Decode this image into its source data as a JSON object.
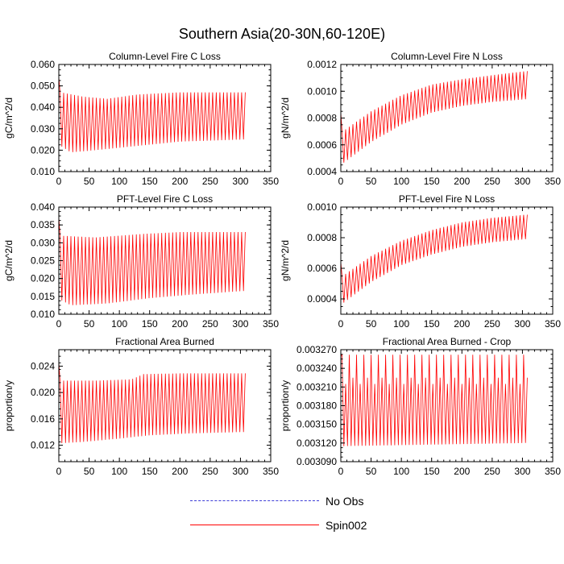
{
  "figure_title": "Southern Asia(20-30N,60-120E)",
  "legend": {
    "items": [
      {
        "label": "No Obs",
        "color": "#3b3bd6",
        "style": "dashed"
      },
      {
        "label": "Spin002",
        "color": "#ff0000",
        "style": "solid"
      }
    ]
  },
  "chart_data": [
    {
      "type": "line",
      "title": "Column-Level Fire C Loss",
      "ylabel": "gC/m^2/d",
      "xlabel": "",
      "xlim": [
        0,
        350
      ],
      "xticks": [
        0,
        50,
        100,
        150,
        200,
        250,
        300,
        350
      ],
      "ylim": [
        0.01,
        0.06
      ],
      "yticks": [
        "0.010",
        "0.020",
        "0.030",
        "0.040",
        "0.050",
        "0.060"
      ],
      "series": [
        {
          "name": "Spin002",
          "color": "#ff0000",
          "x_range": [
            0,
            308
          ],
          "period": 6,
          "spike": 0.054,
          "upper_pts": [
            [
              3,
              0.047
            ],
            [
              40,
              0.045
            ],
            [
              80,
              0.044
            ],
            [
              130,
              0.046
            ],
            [
              200,
              0.047
            ],
            [
              305,
              0.047
            ]
          ],
          "lower_pts": [
            [
              3,
              0.022
            ],
            [
              20,
              0.019
            ],
            [
              60,
              0.02
            ],
            [
              130,
              0.022
            ],
            [
              200,
              0.024
            ],
            [
              305,
              0.025
            ]
          ]
        }
      ]
    },
    {
      "type": "line",
      "title": "Column-Level Fire N Loss",
      "ylabel": "gN/m^2/d",
      "xlabel": "",
      "xlim": [
        0,
        350
      ],
      "xticks": [
        0,
        50,
        100,
        150,
        200,
        250,
        300,
        350
      ],
      "ylim": [
        0.0004,
        0.0012
      ],
      "yticks": [
        "0.0004",
        "0.0006",
        "0.0008",
        "0.0010",
        "0.0012"
      ],
      "series": [
        {
          "name": "Spin002",
          "color": "#ff0000",
          "x_range": [
            0,
            308
          ],
          "period": 6,
          "spike": 0.00084,
          "upper_pts": [
            [
              3,
              0.0007
            ],
            [
              50,
              0.00085
            ],
            [
              100,
              0.00097
            ],
            [
              150,
              0.00105
            ],
            [
              200,
              0.00109
            ],
            [
              250,
              0.00112
            ],
            [
              305,
              0.00115
            ]
          ],
          "lower_pts": [
            [
              3,
              0.00046
            ],
            [
              50,
              0.00062
            ],
            [
              100,
              0.00075
            ],
            [
              150,
              0.00084
            ],
            [
              200,
              0.00089
            ],
            [
              250,
              0.00092
            ],
            [
              305,
              0.00094
            ]
          ]
        }
      ]
    },
    {
      "type": "line",
      "title": "PFT-Level Fire C Loss",
      "ylabel": "gC/m^2/d",
      "xlabel": "",
      "xlim": [
        0,
        350
      ],
      "xticks": [
        0,
        50,
        100,
        150,
        200,
        250,
        300,
        350
      ],
      "ylim": [
        0.01,
        0.04
      ],
      "yticks": [
        "0.010",
        "0.015",
        "0.020",
        "0.025",
        "0.030",
        "0.035",
        "0.040"
      ],
      "series": [
        {
          "name": "Spin002",
          "color": "#ff0000",
          "x_range": [
            0,
            308
          ],
          "period": 6,
          "spike": 0.037,
          "upper_pts": [
            [
              3,
              0.032
            ],
            [
              60,
              0.0315
            ],
            [
              140,
              0.0325
            ],
            [
              200,
              0.033
            ],
            [
              305,
              0.033
            ]
          ],
          "lower_pts": [
            [
              3,
              0.014
            ],
            [
              20,
              0.0125
            ],
            [
              80,
              0.013
            ],
            [
              150,
              0.0145
            ],
            [
              220,
              0.0155
            ],
            [
              305,
              0.0165
            ]
          ]
        }
      ]
    },
    {
      "type": "line",
      "title": "PFT-Level Fire N Loss",
      "ylabel": "gN/m^2/d",
      "xlabel": "",
      "xlim": [
        0,
        350
      ],
      "xticks": [
        0,
        50,
        100,
        150,
        200,
        250,
        300,
        350
      ],
      "ylim": [
        0.0003,
        0.001
      ],
      "yticks": [
        "0.0004",
        "0.0006",
        "0.0008",
        "0.0010"
      ],
      "series": [
        {
          "name": "Spin002",
          "color": "#ff0000",
          "x_range": [
            0,
            308
          ],
          "period": 6,
          "spike": 0.00064,
          "upper_pts": [
            [
              3,
              0.00055
            ],
            [
              50,
              0.00068
            ],
            [
              100,
              0.00078
            ],
            [
              150,
              0.00085
            ],
            [
              200,
              0.0009
            ],
            [
              250,
              0.00093
            ],
            [
              305,
              0.00095
            ]
          ],
          "lower_pts": [
            [
              3,
              0.00037
            ],
            [
              50,
              0.00051
            ],
            [
              100,
              0.00062
            ],
            [
              150,
              0.00069
            ],
            [
              200,
              0.00074
            ],
            [
              250,
              0.00077
            ],
            [
              305,
              0.00079
            ]
          ]
        }
      ]
    },
    {
      "type": "line",
      "title": "Fractional Area Burned",
      "ylabel": "proportion/y",
      "xlabel": "",
      "xlim": [
        0,
        350
      ],
      "xticks": [
        0,
        50,
        100,
        150,
        200,
        250,
        300,
        350
      ],
      "ylim": [
        0.0095,
        0.0265
      ],
      "yticks": [
        "0.012",
        "0.016",
        "0.020",
        "0.024"
      ],
      "series": [
        {
          "name": "Spin002",
          "color": "#ff0000",
          "x_range": [
            0,
            308
          ],
          "period": 6,
          "spike": 0.0246,
          "upper_pts": [
            [
              3,
              0.0218
            ],
            [
              60,
              0.0218
            ],
            [
              120,
              0.022
            ],
            [
              140,
              0.0228
            ],
            [
              200,
              0.0229
            ],
            [
              305,
              0.0229
            ]
          ],
          "lower_pts": [
            [
              3,
              0.0123
            ],
            [
              40,
              0.0125
            ],
            [
              100,
              0.013
            ],
            [
              150,
              0.0135
            ],
            [
              220,
              0.0138
            ],
            [
              305,
              0.014
            ]
          ]
        }
      ]
    },
    {
      "type": "line",
      "title": "Fractional Area Burned - Crop",
      "ylabel": "proportion/y",
      "xlabel": "",
      "xlim": [
        0,
        350
      ],
      "xticks": [
        0,
        50,
        100,
        150,
        200,
        250,
        300,
        350
      ],
      "ylim": [
        0.00309,
        0.00327
      ],
      "yticks": [
        "0.003090",
        "0.003120",
        "0.003150",
        "0.003180",
        "0.003210",
        "0.003240",
        "0.003270"
      ],
      "series": [
        {
          "name": "Spin002",
          "color": "#ff0000",
          "x_range": [
            0,
            308
          ],
          "period": 6,
          "spike": 0.00326,
          "mid_band": [
            0.003215,
            0.003225
          ],
          "upper_pts": [
            [
              3,
              0.003262
            ],
            [
              305,
              0.003262
            ]
          ],
          "lower_pts": [
            [
              3,
              0.003115
            ],
            [
              305,
              0.00312
            ]
          ]
        }
      ]
    }
  ]
}
